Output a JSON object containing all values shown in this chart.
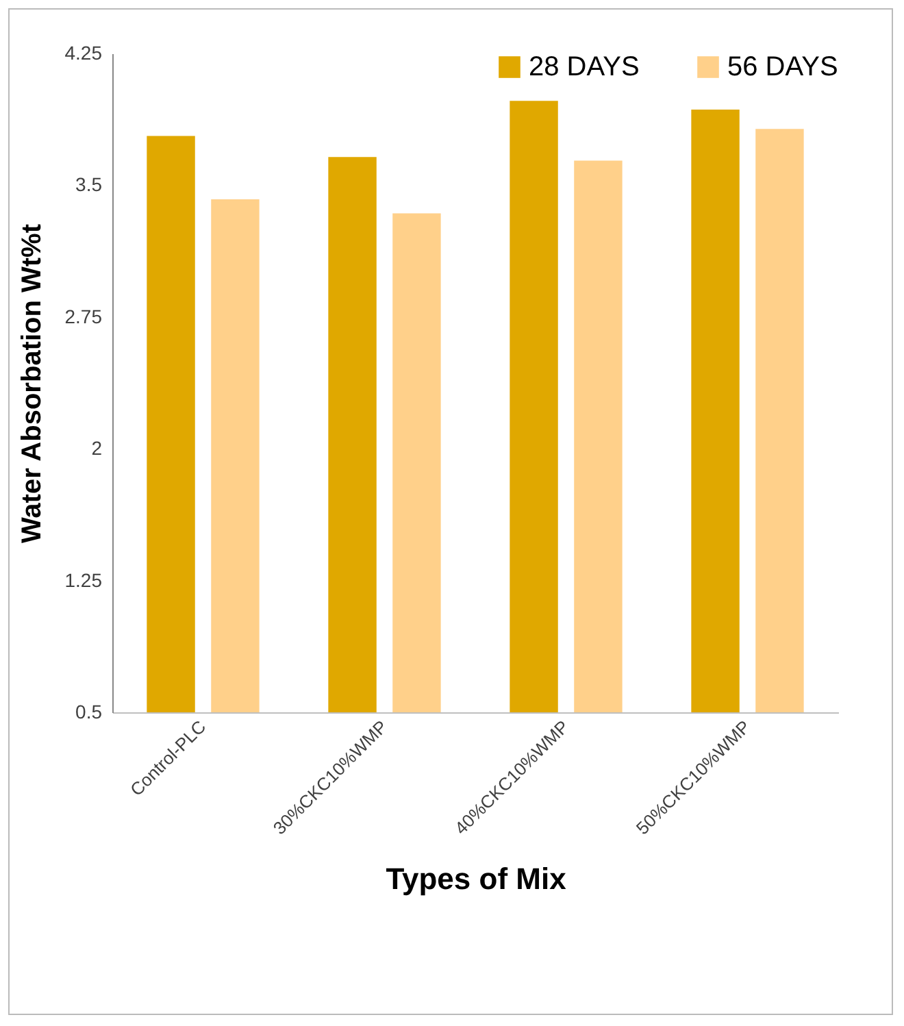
{
  "chart_data": {
    "type": "bar",
    "xlabel": "Types of Mix",
    "ylabel": "Water Absorbation Wt%t",
    "categories": [
      "Control-PLC",
      "30%CKC10%WMP",
      "40%CKC10%WMP",
      "50%CKC10%WMP"
    ],
    "series": [
      {
        "name": "28 DAYS",
        "color": "#e0a800",
        "values": [
          3.78,
          3.66,
          3.98,
          3.93
        ]
      },
      {
        "name": "56 DAYS",
        "color": "#ffd08a",
        "values": [
          3.42,
          3.34,
          3.64,
          3.82
        ]
      }
    ],
    "ylim": [
      0.5,
      4.25
    ],
    "yticks": [
      0.5,
      1.25,
      2,
      2.75,
      3.5,
      4.25
    ],
    "grid": false,
    "legend": "top right"
  }
}
